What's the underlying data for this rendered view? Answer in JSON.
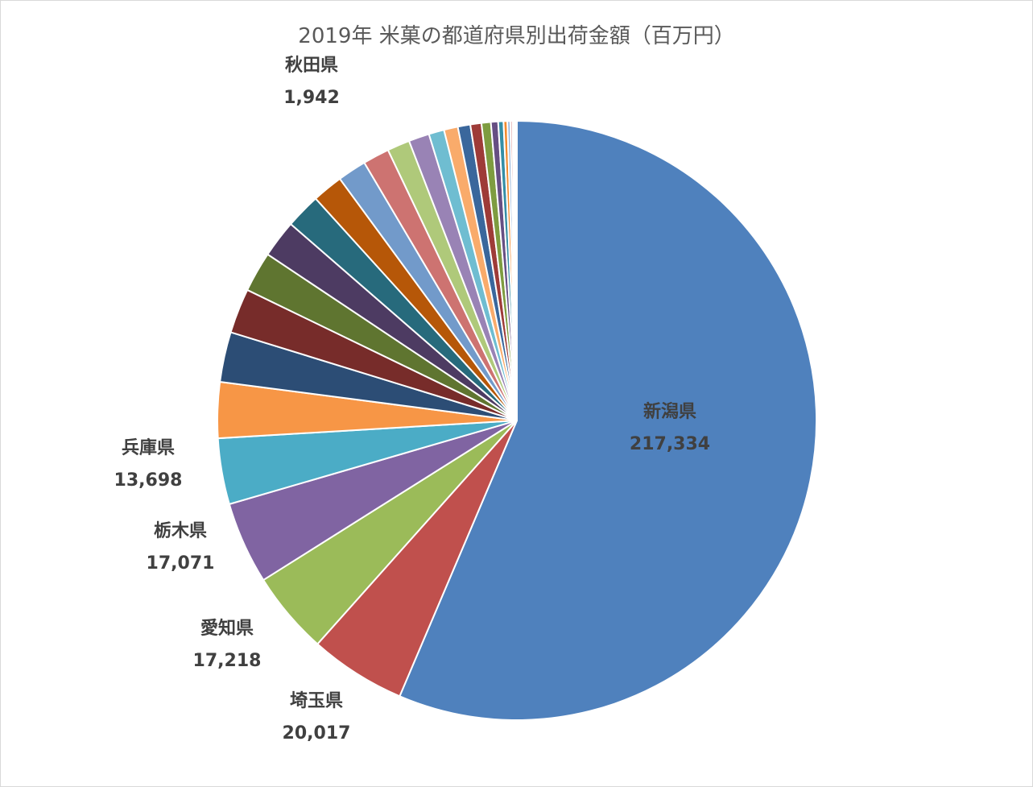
{
  "chart_data": {
    "type": "pie",
    "title": "2019年 米菓の都道府県別出荷金額（百万円）",
    "start_angle_deg": 0,
    "direction": "clockwise",
    "slices": [
      {
        "name": "新潟県",
        "value": 217334,
        "value_label": "217,334",
        "color": "#4F81BD",
        "labeled": true
      },
      {
        "name": "埼玉県",
        "value": 20017,
        "value_label": "20,017",
        "color": "#C0504D",
        "labeled": true
      },
      {
        "name": "愛知県",
        "value": 17218,
        "value_label": "17,218",
        "color": "#9BBB59",
        "labeled": true
      },
      {
        "name": "栃木県",
        "value": 17071,
        "value_label": "17,071",
        "color": "#8064A2",
        "labeled": true
      },
      {
        "name": "兵庫県",
        "value": 13698,
        "value_label": "13,698",
        "color": "#4BACC6",
        "labeled": true
      },
      {
        "name": "",
        "value": 11600,
        "value_label": "",
        "color": "#F79646",
        "labeled": false
      },
      {
        "name": "",
        "value": 10400,
        "value_label": "",
        "color": "#2C4D75",
        "labeled": false
      },
      {
        "name": "",
        "value": 9300,
        "value_label": "",
        "color": "#772C2A",
        "labeled": false
      },
      {
        "name": "",
        "value": 8400,
        "value_label": "",
        "color": "#5F7530",
        "labeled": false
      },
      {
        "name": "",
        "value": 7800,
        "value_label": "",
        "color": "#4D3B62",
        "labeled": false
      },
      {
        "name": "",
        "value": 7300,
        "value_label": "",
        "color": "#276A7C",
        "labeled": false
      },
      {
        "name": "",
        "value": 6400,
        "value_label": "",
        "color": "#B65708",
        "labeled": false
      },
      {
        "name": "",
        "value": 6000,
        "value_label": "",
        "color": "#729ACA",
        "labeled": false
      },
      {
        "name": "",
        "value": 5500,
        "value_label": "",
        "color": "#CD7371",
        "labeled": false
      },
      {
        "name": "",
        "value": 4700,
        "value_label": "",
        "color": "#AFC97A",
        "labeled": false
      },
      {
        "name": "",
        "value": 4300,
        "value_label": "",
        "color": "#9983B5",
        "labeled": false
      },
      {
        "name": "",
        "value": 3200,
        "value_label": "",
        "color": "#6FBDD1",
        "labeled": false
      },
      {
        "name": "",
        "value": 2900,
        "value_label": "",
        "color": "#F9AB6B",
        "labeled": false
      },
      {
        "name": "",
        "value": 2600,
        "value_label": "",
        "color": "#3A679C",
        "labeled": false
      },
      {
        "name": "",
        "value": 2300,
        "value_label": "",
        "color": "#9E3B38",
        "labeled": false
      },
      {
        "name": "秋田県",
        "value": 1942,
        "value_label": "1,942",
        "color": "#7E9C40",
        "labeled": true
      },
      {
        "name": "",
        "value": 1500,
        "value_label": "",
        "color": "#664F83",
        "labeled": false
      },
      {
        "name": "",
        "value": 1100,
        "value_label": "",
        "color": "#358EA6",
        "labeled": false
      },
      {
        "name": "",
        "value": 800,
        "value_label": "",
        "color": "#F38A2E",
        "labeled": false
      },
      {
        "name": "",
        "value": 600,
        "value_label": "",
        "color": "#8EB0D9",
        "labeled": false
      },
      {
        "name": "",
        "value": 450,
        "value_label": "",
        "color": "#D99594",
        "labeled": false
      },
      {
        "name": "",
        "value": 350,
        "value_label": "",
        "color": "#C3D69B",
        "labeled": false
      },
      {
        "name": "",
        "value": 250,
        "value_label": "",
        "color": "#B2A2C7",
        "labeled": false
      },
      {
        "name": "",
        "value": 180,
        "value_label": "",
        "color": "#92CDDC",
        "labeled": false
      },
      {
        "name": "",
        "value": 120,
        "value_label": "",
        "color": "#FAC090",
        "labeled": false
      }
    ],
    "legend": "none"
  }
}
